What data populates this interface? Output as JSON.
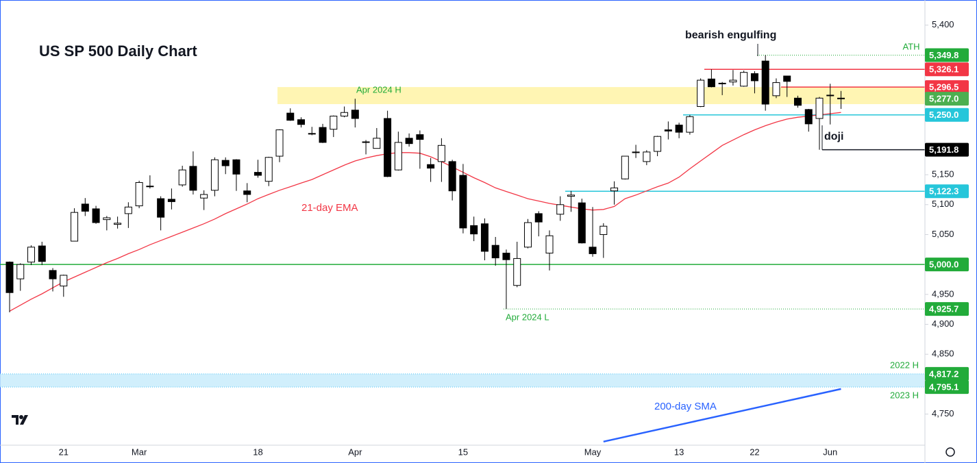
{
  "chart_data": {
    "type": "candlestick",
    "title": "US SP 500 Daily Chart",
    "categories": [
      null,
      null,
      null,
      null,
      null,
      "21",
      null,
      null,
      null,
      null,
      null,
      null,
      "Mar",
      null,
      null,
      null,
      null,
      null,
      null,
      null,
      null,
      null,
      null,
      "18",
      null,
      null,
      null,
      null,
      null,
      null,
      null,
      null,
      "Apr",
      null,
      null,
      null,
      null,
      null,
      null,
      null,
      null,
      null,
      "15",
      null,
      null,
      null,
      null,
      null,
      null,
      null,
      null,
      null,
      null,
      null,
      "May",
      null,
      null,
      null,
      null,
      null,
      null,
      null,
      "13",
      null,
      null,
      null,
      null,
      null,
      null,
      "22",
      null,
      null,
      null,
      null,
      null,
      null,
      "Jun",
      null
    ],
    "open": [
      5004,
      4976,
      5004,
      5031,
      4990,
      4964,
      5039,
      5101,
      5093,
      5075,
      5067,
      5085,
      5098,
      5131,
      5110,
      5109,
      5133,
      5164,
      5111,
      5124,
      5174,
      5175,
      5123,
      5154,
      5139,
      5181,
      5253,
      5242,
      5219,
      5229,
      5226,
      5248,
      5258,
      5204,
      5194,
      5244,
      5158,
      5211,
      5217,
      5167,
      5172,
      5172,
      5149,
      5065,
      5068,
      5032,
      5019,
      4965,
      5029,
      5085,
      5019,
      5084,
      5114,
      5103,
      5029,
      5050,
      5123,
      5143,
      5188,
      5172,
      5189,
      5225,
      5233,
      5221,
      5264,
      5310,
      5303,
      5305,
      5298,
      5319,
      5340,
      5282,
      5315,
      5278,
      5259,
      5244,
      5283,
      5278
    ],
    "high": [
      5005,
      5002,
      5032,
      5038,
      4994,
      4983,
      5094,
      5111,
      5098,
      5081,
      5080,
      5104,
      5140,
      5149,
      5114,
      5127,
      5165,
      5189,
      5124,
      5179,
      5179,
      5176,
      5136,
      5175,
      5180,
      5226,
      5261,
      5246,
      5230,
      5235,
      5249,
      5264,
      5277,
      5208,
      5228,
      5257,
      5222,
      5219,
      5224,
      5178,
      5211,
      5175,
      5168,
      5080,
      5077,
      5046,
      5025,
      5038,
      5076,
      5089,
      5057,
      5114,
      5123,
      5110,
      5096,
      5069,
      5139,
      5181,
      5200,
      5191,
      5215,
      5239,
      5237,
      5250,
      5311,
      5326.1,
      5305,
      5325,
      5324,
      5323,
      5349.8,
      5311,
      5315,
      5282,
      5260,
      5280,
      5302,
      5290
    ],
    "low": [
      4920,
      4956,
      4999,
      4999,
      4955,
      4946,
      5039,
      5081,
      5068,
      5057,
      5060,
      5061,
      5094,
      5127,
      5057,
      5092,
      5130,
      5117,
      5091,
      5114,
      5151,
      5123,
      5104,
      5145,
      5131,
      5171,
      5240,
      5229,
      5216,
      5203,
      5213,
      5246,
      5229,
      5184,
      5194,
      5146,
      5157,
      5197,
      5160,
      5138,
      5138,
      5107,
      5052,
      5039,
      5007,
      4998,
      4925.7,
      4962,
      5027,
      5047,
      4990,
      5073,
      5088,
      5035,
      5013,
      5011,
      5100,
      5142,
      5178,
      5166,
      5181,
      5209,
      5211,
      5217,
      5263,
      5296,
      5283,
      5299,
      5297,
      5286,
      5257,
      5278,
      5280,
      5262,
      5222,
      5191.8,
      5234,
      5260
    ],
    "close": [
      4953,
      5000,
      5029,
      5005,
      4976,
      4982,
      5087,
      5089,
      5070,
      5078,
      5069,
      5096,
      5137,
      5131,
      5079,
      5105,
      5158,
      5124,
      5117,
      5175,
      5165,
      5151,
      5117,
      5149,
      5179,
      5225,
      5241,
      5234,
      5218,
      5204,
      5248,
      5254,
      5244,
      5205,
      5211,
      5147,
      5204,
      5202,
      5209,
      5161,
      5199,
      5123,
      5061,
      5051,
      5022,
      5011,
      5008,
      5010,
      5070,
      5071,
      5048,
      5100,
      5116,
      5036,
      5018,
      5064,
      5128,
      5181,
      5187,
      5188,
      5214,
      5223,
      5221,
      5247,
      5308,
      5297,
      5303,
      5308,
      5321,
      5307,
      5268,
      5304,
      5306,
      5266,
      5235,
      5278,
      5283,
      5277
    ],
    "up_color": "#ffffff",
    "down_color": "#000000",
    "indicators": [
      {
        "name": "21-day EMA",
        "color": "#f23645",
        "values": [
          4922,
          4932,
          4942,
          4951,
          4961,
          4971,
          4979,
          4987,
          4995,
          5003,
          5010,
          5018,
          5025,
          5033,
          5040,
          5047,
          5054,
          5061,
          5068,
          5076,
          5085,
          5093,
          5101,
          5110,
          5117,
          5124,
          5130,
          5136,
          5142,
          5150,
          5158,
          5166,
          5173,
          5178,
          5182,
          5185,
          5187,
          5187,
          5186,
          5180,
          5172,
          5163,
          5154,
          5145,
          5137,
          5128,
          5122,
          5116,
          5110,
          5106,
          5102,
          5099,
          5096,
          5093,
          5091,
          5092,
          5097,
          5110,
          5116,
          5123,
          5130,
          5136,
          5146,
          5160,
          5173,
          5186,
          5199,
          5208,
          5217,
          5225,
          5232,
          5238,
          5243,
          5246,
          5248,
          5250,
          5252,
          5254
        ]
      },
      {
        "name": "200-day SMA",
        "color": "#2962ff",
        "values": [
          null,
          null,
          null,
          null,
          null,
          null,
          null,
          null,
          null,
          null,
          null,
          null,
          null,
          null,
          null,
          null,
          null,
          null,
          null,
          null,
          null,
          null,
          null,
          null,
          null,
          null,
          null,
          null,
          null,
          null,
          null,
          null,
          null,
          null,
          null,
          null,
          null,
          null,
          null,
          null,
          null,
          null,
          null,
          null,
          null,
          null,
          null,
          null,
          null,
          null,
          null,
          null,
          null,
          null,
          null,
          4704,
          4708,
          4712,
          4716,
          4720,
          4724,
          4728,
          4732,
          4736,
          4740,
          4744,
          4748,
          4752,
          4756,
          4760,
          4764,
          4768,
          4772,
          4776,
          4780,
          4784,
          4788,
          4792
        ]
      }
    ],
    "levels": [
      {
        "value": 5349.8,
        "label": "5,349.8",
        "color": "#22ab3a",
        "box_color": "#22ab3a",
        "style": "dotted"
      },
      {
        "value": 5326.1,
        "label": "5,326.1",
        "color": "#f23645",
        "box_color": "#f23645",
        "style": "solid"
      },
      {
        "value": 5296.5,
        "label": "5,296.5",
        "color": "#f23645",
        "box_color": "#f23645",
        "style": "solid"
      },
      {
        "value": 5277.0,
        "label": "5,277.0",
        "color": "#4caf50",
        "box_color": "#4caf50",
        "style": "none"
      },
      {
        "value": 5250.0,
        "label": "5,250.0",
        "color": "#26c6da",
        "box_color": "#26c6da",
        "style": "solid"
      },
      {
        "value": 5191.8,
        "label": "5,191.8",
        "color": "#131722",
        "box_color": "#000000",
        "style": "solid"
      },
      {
        "value": 5122.3,
        "label": "5,122.3",
        "color": "#26c6da",
        "box_color": "#26c6da",
        "style": "solid"
      },
      {
        "value": 5000.0,
        "label": "5,000.0",
        "color": "#22ab3a",
        "box_color": "#22ab3a",
        "style": "solid"
      },
      {
        "value": 4925.7,
        "label": "4,925.7",
        "color": "#22ab3a",
        "box_color": "#22ab3a",
        "style": "dotted"
      },
      {
        "value": 4817.2,
        "label": "4,817.2",
        "color": "#4fc3f7",
        "box_color": "#22ab3a",
        "style": "dotted"
      },
      {
        "value": 4795.1,
        "label": "4,795.1",
        "color": "#4fc3f7",
        "box_color": "#22ab3a",
        "style": "dotted"
      }
    ],
    "zones": [
      {
        "low": 5268,
        "high": 5296.5,
        "color": "#fff3a6"
      },
      {
        "low": 4795.1,
        "high": 4817.2,
        "color": "#c9ecfb"
      }
    ],
    "annotations": [
      {
        "text": "ATH",
        "color": "#22ab3a"
      },
      {
        "text": "2022 H",
        "color": "#22ab3a"
      },
      {
        "text": "2023 H",
        "color": "#22ab3a"
      },
      {
        "text": "Apr 2024 H",
        "color": "#22ab3a"
      },
      {
        "text": "Apr 2024 L",
        "color": "#22ab3a"
      },
      {
        "text": "bearish engulfing",
        "color": "#131722"
      },
      {
        "text": "doji",
        "color": "#131722"
      }
    ],
    "ylim": [
      4698,
      5442
    ],
    "yticks": [
      {
        "value": 5400,
        "label": "5,400"
      },
      {
        "value": 5150,
        "label": "5,150"
      },
      {
        "value": 5100,
        "label": "5,100"
      },
      {
        "value": 5050,
        "label": "5,050"
      },
      {
        "value": 4950,
        "label": "4,950"
      },
      {
        "value": 4900,
        "label": "4,900"
      },
      {
        "value": 4850,
        "label": "4,850"
      },
      {
        "value": 4750,
        "label": "4,750"
      }
    ]
  }
}
